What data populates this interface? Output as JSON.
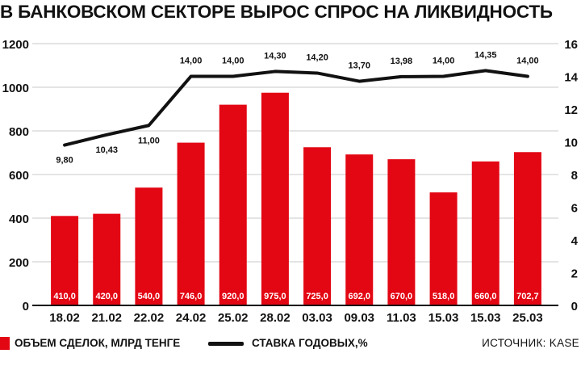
{
  "title": "В БАНКОВСКОМ СЕКТОРЕ ВЫРОС СПРОС НА ЛИКВИДНОСТЬ",
  "colors": {
    "bar": "#e30613",
    "line": "#111111",
    "grid": "#c8c8c8",
    "bar_label": "#ffffff"
  },
  "legend": {
    "bar_label": "ОБЪЕМ СДЕЛОК, МЛРД ТЕНГЕ",
    "line_label": "СТАВКА ГОДОВЫХ,%",
    "source": "ИСТОЧНИК: KASE"
  },
  "chart_data": {
    "type": "bar",
    "categories": [
      "18.02",
      "21.02",
      "22.02",
      "24.02",
      "25.02",
      "28.02",
      "03.03",
      "09.03",
      "11.03",
      "15.03",
      "15.03",
      "25.03"
    ],
    "series": [
      {
        "name": "ОБЪЕМ СДЕЛОК, МЛРД ТЕНГЕ",
        "type": "bar",
        "axis": "left",
        "values": [
          410.0,
          420.0,
          540.0,
          746.0,
          920.0,
          975.0,
          725.0,
          692.0,
          670.0,
          518.0,
          660.0,
          702.7
        ],
        "labels": [
          "410,0",
          "420,0",
          "540,0",
          "746,0",
          "920,0",
          "975,0",
          "725,0",
          "692,0",
          "670,0",
          "518,0",
          "660,0",
          "702,7"
        ]
      },
      {
        "name": "СТАВКА ГОДОВЫХ,%",
        "type": "line",
        "axis": "right",
        "values": [
          9.8,
          10.43,
          11.0,
          14.0,
          14.0,
          14.3,
          14.2,
          13.7,
          13.98,
          14.0,
          14.35,
          14.0
        ],
        "labels": [
          "9,80",
          "10,43",
          "11,00",
          "14,00",
          "14,00",
          "14,30",
          "14,20",
          "13,70",
          "13,98",
          "14,00",
          "14,35",
          "14,00"
        ]
      }
    ],
    "y_left": {
      "lim": [
        0,
        1200
      ],
      "ticks": [
        0,
        200,
        400,
        600,
        800,
        1000,
        1200
      ]
    },
    "y_right": {
      "lim": [
        0,
        16
      ],
      "ticks": [
        0,
        2,
        4,
        6,
        8,
        10,
        12,
        14,
        16
      ]
    },
    "grid": true,
    "legend_position": "bottom"
  }
}
